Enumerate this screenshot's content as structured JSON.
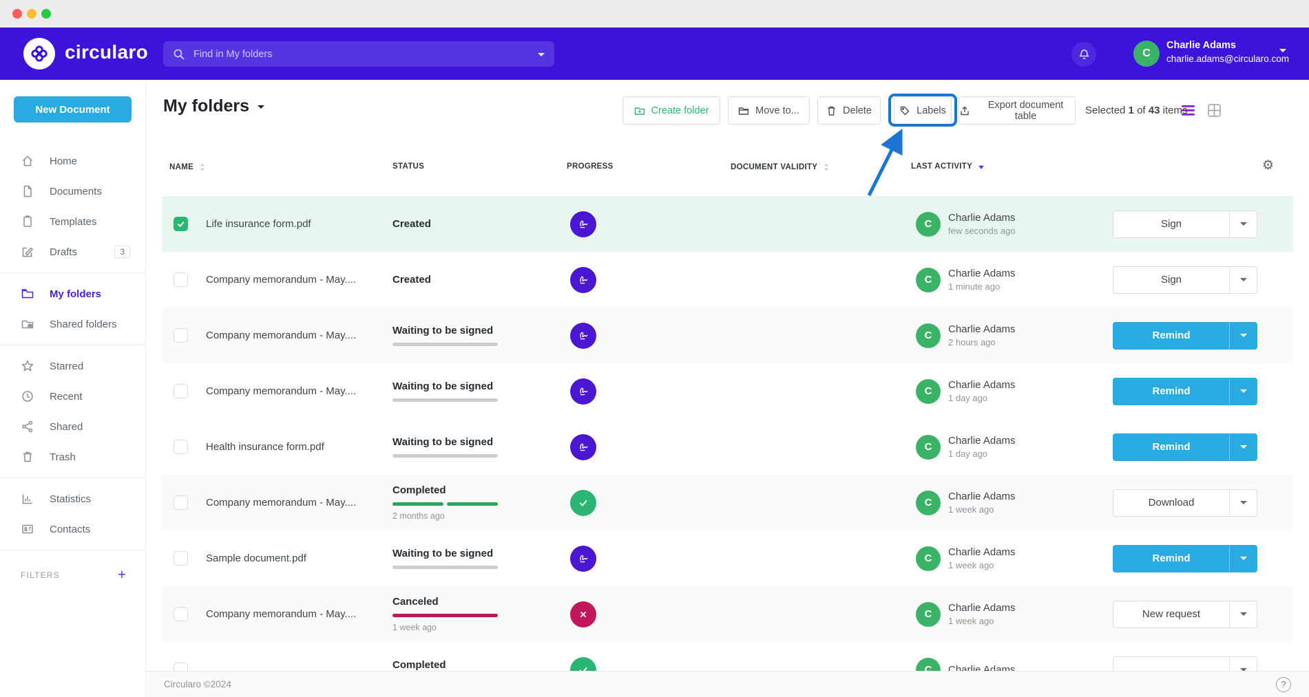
{
  "header": {
    "brand": "circularo",
    "search_placeholder": "Find in My folders",
    "user": {
      "name": "Charlie Adams",
      "email": "charlie.adams@circularo.com",
      "avatar_initial": "C"
    }
  },
  "sidebar": {
    "new_document_label": "New Document",
    "items": [
      {
        "key": "home",
        "label": "Home",
        "icon": "home-icon"
      },
      {
        "key": "documents",
        "label": "Documents",
        "icon": "document-icon"
      },
      {
        "key": "templates",
        "label": "Templates",
        "icon": "template-icon"
      },
      {
        "key": "drafts",
        "label": "Drafts",
        "icon": "draft-icon",
        "badge": "3"
      },
      {
        "divider": true
      },
      {
        "key": "my-folders",
        "label": "My folders",
        "icon": "folder-icon",
        "active": true
      },
      {
        "key": "shared-folders",
        "label": "Shared folders",
        "icon": "shared-folder-icon"
      },
      {
        "divider": true
      },
      {
        "key": "starred",
        "label": "Starred",
        "icon": "star-icon"
      },
      {
        "key": "recent",
        "label": "Recent",
        "icon": "clock-icon"
      },
      {
        "key": "shared",
        "label": "Shared",
        "icon": "share-icon"
      },
      {
        "key": "trash",
        "label": "Trash",
        "icon": "trash-icon"
      },
      {
        "divider": true
      },
      {
        "key": "statistics",
        "label": "Statistics",
        "icon": "statistics-icon"
      },
      {
        "key": "contacts",
        "label": "Contacts",
        "icon": "contacts-icon"
      },
      {
        "divider": true
      }
    ],
    "filters_label": "FILTERS",
    "filters_add": "+"
  },
  "main": {
    "title": "My folders",
    "toolbar": {
      "buttons": [
        {
          "key": "create-folder",
          "label": "Create folder",
          "icon": "folder-plus-icon",
          "accent": "green"
        },
        {
          "key": "move-to",
          "label": "Move to...",
          "icon": "folder-move-icon"
        },
        {
          "key": "delete",
          "label": "Delete",
          "icon": "trash-small-icon"
        },
        {
          "key": "labels",
          "label": "Labels",
          "icon": "tag-icon",
          "highlighted": true
        },
        {
          "key": "export",
          "label": "Export document table",
          "icon": "export-icon"
        }
      ],
      "selection": {
        "prefix": "Selected",
        "selected_count": "1",
        "of_label": "of",
        "total_count": "43",
        "suffix": "items"
      }
    },
    "table": {
      "columns": [
        {
          "key": "name",
          "label": "NAME",
          "sort": "unsorted"
        },
        {
          "key": "status",
          "label": "STATUS",
          "sort": "none"
        },
        {
          "key": "progress",
          "label": "PROGRESS",
          "sort": "none"
        },
        {
          "key": "validity",
          "label": "DOCUMENT VALIDITY",
          "sort": "unsorted"
        },
        {
          "key": "activity",
          "label": "LAST ACTIVITY",
          "sort": "desc"
        }
      ],
      "rows": [
        {
          "checked": true,
          "bg": "selected",
          "name": "Life insurance form.pdf",
          "status": "Created",
          "bar": "none",
          "time": "",
          "icon": "signature",
          "avatar_initial": "C",
          "actor": "Charlie Adams",
          "activity": "few seconds ago",
          "action": "Sign",
          "action_style": "default"
        },
        {
          "checked": false,
          "bg": "",
          "name": "Company memorandum - May....",
          "status": "Created",
          "bar": "none",
          "time": "",
          "icon": "signature",
          "avatar_initial": "C",
          "actor": "Charlie Adams",
          "activity": "1 minute ago",
          "action": "Sign",
          "action_style": "default"
        },
        {
          "checked": false,
          "bg": "alt",
          "name": "Company memorandum - May....",
          "status": "Waiting to be signed",
          "bar": "gray",
          "time": "",
          "icon": "signature",
          "avatar_initial": "C",
          "actor": "Charlie Adams",
          "activity": "2 hours ago",
          "action": "Remind",
          "action_style": "primary"
        },
        {
          "checked": false,
          "bg": "",
          "name": "Company memorandum - May....",
          "status": "Waiting to be signed",
          "bar": "gray",
          "time": "",
          "icon": "signature",
          "avatar_initial": "C",
          "actor": "Charlie Adams",
          "activity": "1 day ago",
          "action": "Remind",
          "action_style": "primary"
        },
        {
          "checked": false,
          "bg": "",
          "name": "Health insurance form.pdf",
          "status": "Waiting to be signed",
          "bar": "gray",
          "time": "",
          "icon": "signature",
          "avatar_initial": "C",
          "actor": "Charlie Adams",
          "activity": "1 day ago",
          "action": "Remind",
          "action_style": "primary"
        },
        {
          "checked": false,
          "bg": "alt",
          "name": "Company memorandum - May....",
          "status": "Completed",
          "bar": "green",
          "time": "2 months ago",
          "icon": "check",
          "avatar_initial": "C",
          "actor": "Charlie Adams",
          "activity": "1 week ago",
          "action": "Download",
          "action_style": "default"
        },
        {
          "checked": false,
          "bg": "",
          "name": "Sample document.pdf",
          "status": "Waiting to be signed",
          "bar": "gray",
          "time": "",
          "icon": "signature",
          "avatar_initial": "C",
          "actor": "Charlie Adams",
          "activity": "1 week ago",
          "action": "Remind",
          "action_style": "primary"
        },
        {
          "checked": false,
          "bg": "alt",
          "name": "Company memorandum - May....",
          "status": "Canceled",
          "bar": "red",
          "time": "1 week ago",
          "icon": "cross",
          "avatar_initial": "C",
          "actor": "Charlie Adams",
          "activity": "1 week ago",
          "action": "New request",
          "action_style": "default"
        },
        {
          "checked": false,
          "bg": "",
          "name": "",
          "status": "Completed",
          "bar": "green",
          "time": "",
          "icon": "check",
          "avatar_initial": "C",
          "actor": "Charlie Adams",
          "activity": "",
          "action": "",
          "action_style": "default"
        }
      ]
    },
    "footer": {
      "copyright": "Circularo ©2024",
      "help": "?"
    }
  },
  "icons": {
    "gear": "⚙"
  },
  "colors": {
    "brand_purple": "#3B13DB",
    "accent_blue": "#29ABE2",
    "success_green": "#2BB673",
    "danger_red": "#C2185B",
    "active_purple": "#4A1FD6",
    "highlight_blue": "#1B75D6",
    "selected_row_bg": "#E9F6EF"
  }
}
